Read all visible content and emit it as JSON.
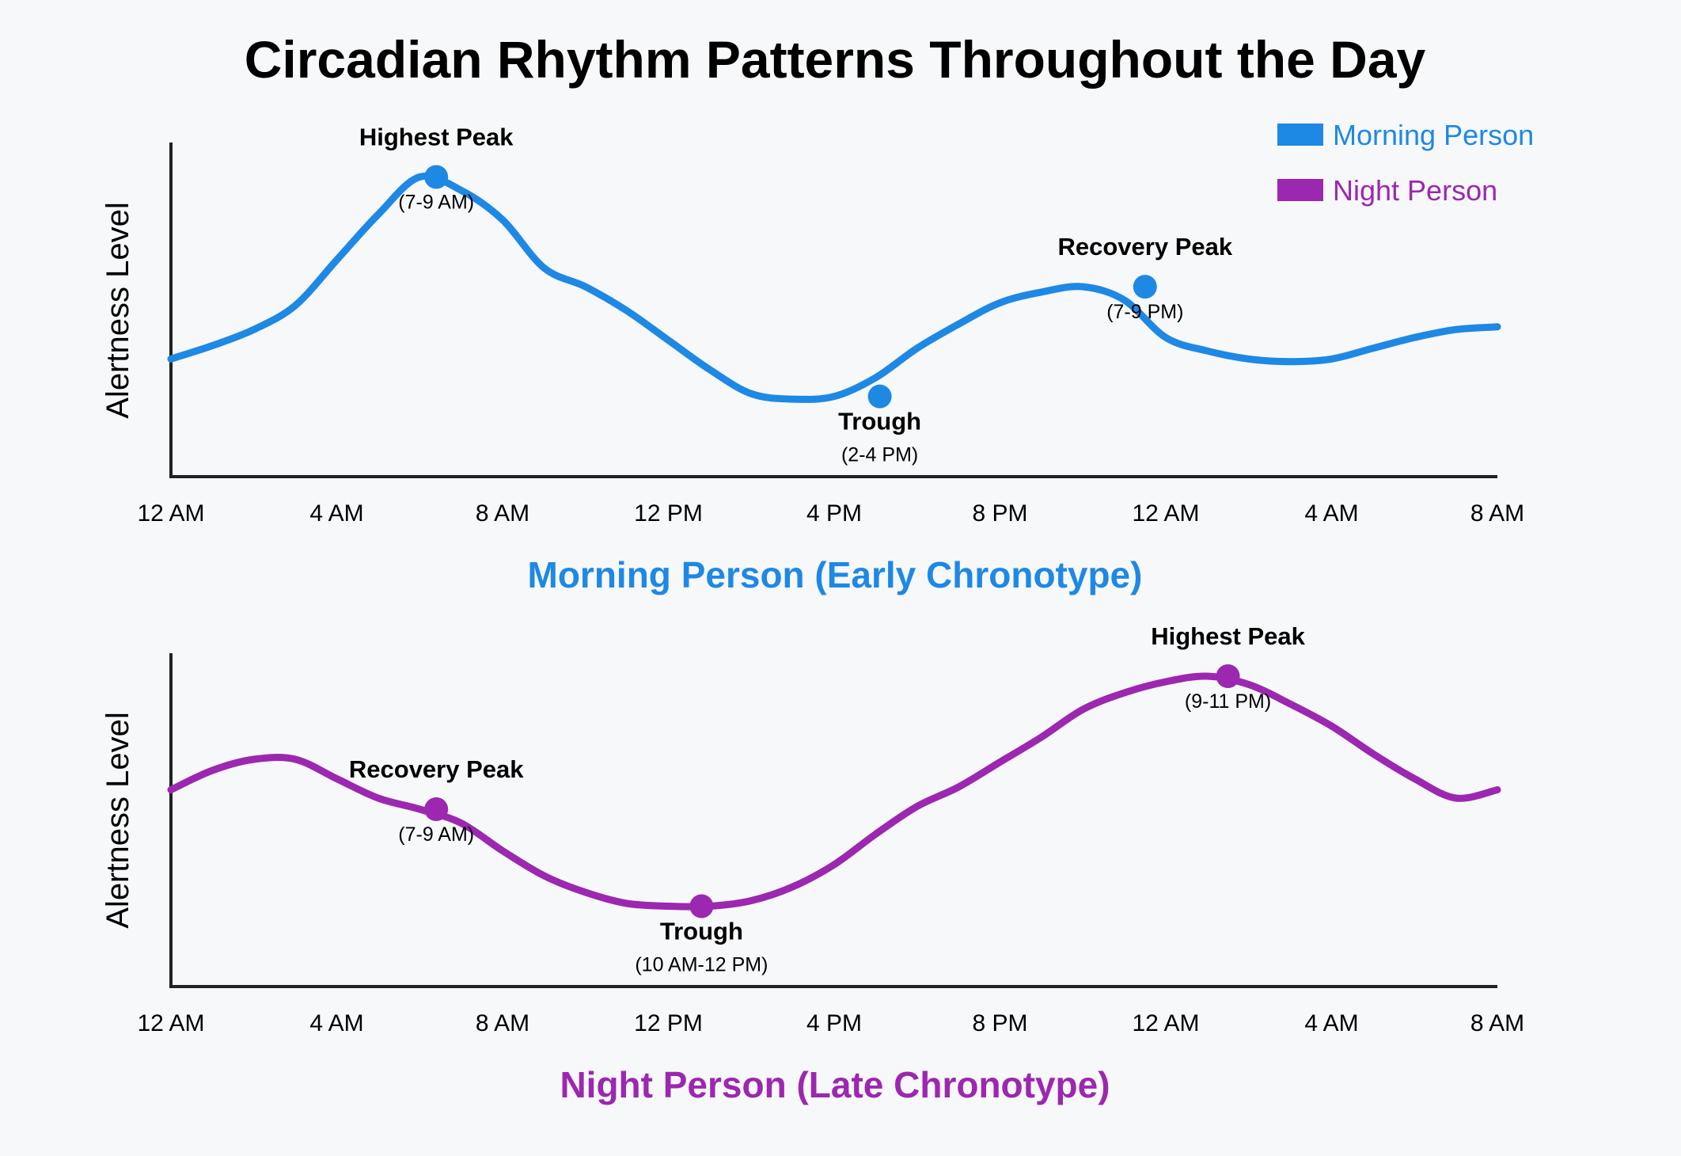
{
  "title": "Circadian Rhythm Patterns Throughout the Day",
  "colors": {
    "morning": "#1e88e5",
    "night": "#9c27b0"
  },
  "legend": [
    {
      "label": "Morning Person",
      "color": "#1e88e5"
    },
    {
      "label": "Night Person",
      "color": "#9c27b0"
    }
  ],
  "chart_data": [
    {
      "type": "line",
      "subtitle": "Morning Person (Early Chronotype)",
      "ylabel": "Alertness Level",
      "x_ticks": [
        "12 AM",
        "4 AM",
        "8 AM",
        "12 PM",
        "4 PM",
        "8 PM",
        "12 AM",
        "4 AM",
        "8 AM"
      ],
      "xlim": [
        0,
        32
      ],
      "ylim": [
        0,
        10
      ],
      "series": [
        {
          "name": "Morning Person",
          "color": "#1e88e5",
          "x": [
            0,
            1,
            2,
            3,
            4,
            5,
            6,
            7,
            8,
            9,
            10,
            11,
            12,
            13,
            14,
            15,
            16,
            17,
            18,
            19,
            20,
            21,
            22,
            23,
            24,
            25,
            26,
            27,
            28,
            29,
            30,
            31,
            32
          ],
          "y": [
            2.8,
            3.3,
            3.9,
            4.8,
            6.5,
            8.2,
            9.6,
            9.1,
            8.0,
            6.2,
            5.5,
            4.6,
            3.5,
            2.4,
            1.5,
            1.3,
            1.4,
            2.1,
            3.2,
            4.1,
            4.9,
            5.3,
            5.5,
            5.0,
            3.6,
            3.1,
            2.8,
            2.7,
            2.8,
            3.2,
            3.6,
            3.9,
            4.0
          ]
        }
      ],
      "annotations": [
        {
          "x": 6.4,
          "y": 9.6,
          "label": "Highest Peak",
          "time": "(7-9 AM)",
          "label_pos": "above"
        },
        {
          "x": 17.1,
          "y": 1.4,
          "label": "Trough",
          "time": "(2-4 PM)",
          "label_pos": "below"
        },
        {
          "x": 23.5,
          "y": 5.5,
          "label": "Recovery Peak",
          "time": "(7-9 PM)",
          "label_pos": "above"
        }
      ]
    },
    {
      "type": "line",
      "subtitle": "Night Person (Late Chronotype)",
      "ylabel": "Alertness Level",
      "x_ticks": [
        "12 AM",
        "4 AM",
        "8 AM",
        "12 PM",
        "4 PM",
        "8 PM",
        "12 AM",
        "4 AM",
        "8 AM"
      ],
      "xlim": [
        0,
        32
      ],
      "ylim": [
        0,
        10
      ],
      "series": [
        {
          "name": "Night Person",
          "color": "#9c27b0",
          "x": [
            0,
            1,
            2,
            3,
            4,
            5,
            6,
            7,
            8,
            9,
            10,
            11,
            12,
            13,
            14,
            15,
            16,
            17,
            18,
            19,
            20,
            21,
            22,
            23,
            24,
            25,
            26,
            27,
            28,
            29,
            30,
            31,
            32
          ],
          "y": [
            5.5,
            6.2,
            6.6,
            6.6,
            5.9,
            5.2,
            4.8,
            4.3,
            3.3,
            2.4,
            1.8,
            1.4,
            1.3,
            1.3,
            1.5,
            2.0,
            2.8,
            3.9,
            4.9,
            5.6,
            6.5,
            7.4,
            8.4,
            9.0,
            9.4,
            9.6,
            9.3,
            8.6,
            7.8,
            6.8,
            5.9,
            5.2,
            5.5
          ]
        }
      ],
      "annotations": [
        {
          "x": 6.4,
          "y": 4.8,
          "label": "Recovery Peak",
          "time": "(7-9 AM)",
          "label_pos": "above"
        },
        {
          "x": 12.8,
          "y": 1.3,
          "label": "Trough",
          "time": "(10 AM-12 PM)",
          "label_pos": "below"
        },
        {
          "x": 25.5,
          "y": 9.6,
          "label": "Highest Peak",
          "time": "(9-11 PM)",
          "label_pos": "above"
        }
      ]
    }
  ]
}
